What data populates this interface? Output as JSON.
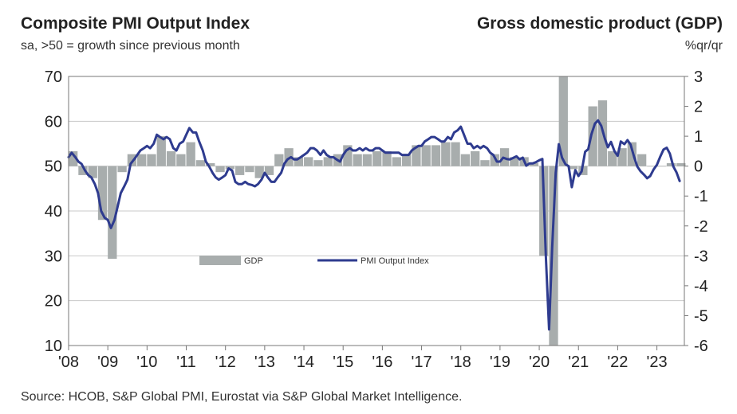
{
  "chart_data": {
    "type": "bar+line",
    "title": "Composite PMI Output Index",
    "subtitle": "sa, >50 = growth since previous month",
    "right_title": "Gross domestic product (GDP)",
    "right_unit": "%qr/qr",
    "source": "Source: HCOB, S&P Global PMI, Eurostat via S&P Global Market Intelligence.",
    "left_axis": {
      "min": 10,
      "max": 70,
      "ticks": [
        "70",
        "60",
        "50",
        "40",
        "30",
        "20",
        "10"
      ]
    },
    "right_axis": {
      "min": -6,
      "max": 3,
      "ticks": [
        "3",
        "2",
        "1",
        "0",
        "-1",
        "-2",
        "-3",
        "-4",
        "-5",
        "-6"
      ]
    },
    "x_ticks": [
      "'08",
      "'09",
      "'10",
      "'11",
      "'12",
      "'13",
      "'14",
      "'15",
      "'16",
      "'17",
      "'18",
      "'19",
      "'20",
      "'21",
      "'22",
      "'23"
    ],
    "x_range": [
      2008.0,
      2023.7
    ],
    "grid": true,
    "legend": {
      "position": "center",
      "gdp_label": "GDP",
      "pmi_label": "PMI Output Index"
    },
    "colors": {
      "gdp_bar": "#a8adad",
      "pmi_line": "#2e3b8f",
      "grid": "#c8c8c8"
    },
    "gdp_series": {
      "name": "GDP",
      "points": [
        [
          2008.0,
          0.5
        ],
        [
          2008.25,
          -0.3
        ],
        [
          2008.5,
          -0.4
        ],
        [
          2008.75,
          -1.8
        ],
        [
          2009.0,
          -3.1
        ],
        [
          2009.25,
          -0.2
        ],
        [
          2009.5,
          0.4
        ],
        [
          2009.75,
          0.4
        ],
        [
          2010.0,
          0.4
        ],
        [
          2010.25,
          1.0
        ],
        [
          2010.5,
          0.5
        ],
        [
          2010.75,
          0.4
        ],
        [
          2011.0,
          0.8
        ],
        [
          2011.25,
          0.2
        ],
        [
          2011.5,
          0.1
        ],
        [
          2011.75,
          -0.2
        ],
        [
          2012.0,
          -0.1
        ],
        [
          2012.25,
          -0.3
        ],
        [
          2012.5,
          -0.2
        ],
        [
          2012.75,
          -0.4
        ],
        [
          2013.0,
          -0.3
        ],
        [
          2013.25,
          0.4
        ],
        [
          2013.5,
          0.6
        ],
        [
          2013.75,
          0.3
        ],
        [
          2014.0,
          0.3
        ],
        [
          2014.25,
          0.2
        ],
        [
          2014.5,
          0.3
        ],
        [
          2014.75,
          0.4
        ],
        [
          2015.0,
          0.7
        ],
        [
          2015.25,
          0.4
        ],
        [
          2015.5,
          0.4
        ],
        [
          2015.75,
          0.5
        ],
        [
          2016.0,
          0.5
        ],
        [
          2016.25,
          0.3
        ],
        [
          2016.5,
          0.4
        ],
        [
          2016.75,
          0.7
        ],
        [
          2017.0,
          0.7
        ],
        [
          2017.25,
          0.7
        ],
        [
          2017.5,
          0.8
        ],
        [
          2017.75,
          0.8
        ],
        [
          2018.0,
          0.4
        ],
        [
          2018.25,
          0.5
        ],
        [
          2018.5,
          0.2
        ],
        [
          2018.75,
          0.4
        ],
        [
          2019.0,
          0.6
        ],
        [
          2019.25,
          0.3
        ],
        [
          2019.5,
          0.3
        ],
        [
          2019.75,
          0.1
        ],
        [
          2020.0,
          -3.0
        ],
        [
          2020.25,
          -6.0
        ],
        [
          2020.5,
          3.0
        ],
        [
          2020.75,
          -0.1
        ],
        [
          2021.0,
          -0.3
        ],
        [
          2021.25,
          2.0
        ],
        [
          2021.5,
          2.2
        ],
        [
          2021.75,
          0.5
        ],
        [
          2022.0,
          0.6
        ],
        [
          2022.25,
          0.8
        ],
        [
          2022.5,
          0.4
        ],
        [
          2022.75,
          0.0
        ],
        [
          2023.0,
          0.0
        ],
        [
          2023.25,
          0.1
        ],
        [
          2023.5,
          0.1
        ]
      ]
    },
    "pmi_series": {
      "name": "PMI Output Index",
      "points": [
        [
          2008.0,
          52.0
        ],
        [
          2008.08,
          53.0
        ],
        [
          2008.17,
          52.0
        ],
        [
          2008.25,
          51.0
        ],
        [
          2008.33,
          50.5
        ],
        [
          2008.42,
          49.0
        ],
        [
          2008.5,
          48.0
        ],
        [
          2008.58,
          47.5
        ],
        [
          2008.67,
          46.0
        ],
        [
          2008.75,
          44.0
        ],
        [
          2008.83,
          40.0
        ],
        [
          2008.92,
          38.5
        ],
        [
          2009.0,
          38.0
        ],
        [
          2009.08,
          36.2
        ],
        [
          2009.17,
          38.0
        ],
        [
          2009.25,
          41.0
        ],
        [
          2009.33,
          44.0
        ],
        [
          2009.42,
          45.5
        ],
        [
          2009.5,
          47.0
        ],
        [
          2009.58,
          50.5
        ],
        [
          2009.67,
          51.5
        ],
        [
          2009.75,
          52.5
        ],
        [
          2009.83,
          53.5
        ],
        [
          2009.92,
          54.0
        ],
        [
          2010.0,
          54.5
        ],
        [
          2010.08,
          54.0
        ],
        [
          2010.17,
          55.0
        ],
        [
          2010.25,
          57.0
        ],
        [
          2010.33,
          56.5
        ],
        [
          2010.42,
          56.0
        ],
        [
          2010.5,
          56.5
        ],
        [
          2010.58,
          56.0
        ],
        [
          2010.67,
          54.0
        ],
        [
          2010.75,
          53.5
        ],
        [
          2010.83,
          55.0
        ],
        [
          2010.92,
          55.5
        ],
        [
          2011.0,
          57.0
        ],
        [
          2011.08,
          58.5
        ],
        [
          2011.17,
          57.5
        ],
        [
          2011.25,
          57.5
        ],
        [
          2011.33,
          55.5
        ],
        [
          2011.42,
          53.5
        ],
        [
          2011.5,
          51.0
        ],
        [
          2011.58,
          50.0
        ],
        [
          2011.67,
          48.5
        ],
        [
          2011.75,
          47.5
        ],
        [
          2011.83,
          47.0
        ],
        [
          2011.92,
          47.5
        ],
        [
          2012.0,
          48.0
        ],
        [
          2012.08,
          49.5
        ],
        [
          2012.17,
          49.0
        ],
        [
          2012.25,
          46.5
        ],
        [
          2012.33,
          46.0
        ],
        [
          2012.42,
          46.0
        ],
        [
          2012.5,
          46.5
        ],
        [
          2012.58,
          46.0
        ],
        [
          2012.67,
          45.8
        ],
        [
          2012.75,
          45.5
        ],
        [
          2012.83,
          46.0
        ],
        [
          2012.92,
          47.0
        ],
        [
          2013.0,
          48.5
        ],
        [
          2013.08,
          47.5
        ],
        [
          2013.17,
          46.5
        ],
        [
          2013.25,
          46.5
        ],
        [
          2013.33,
          47.5
        ],
        [
          2013.42,
          48.5
        ],
        [
          2013.5,
          50.5
        ],
        [
          2013.58,
          51.5
        ],
        [
          2013.67,
          52.0
        ],
        [
          2013.75,
          51.5
        ],
        [
          2013.83,
          51.5
        ],
        [
          2013.92,
          52.0
        ],
        [
          2014.0,
          52.5
        ],
        [
          2014.08,
          53.0
        ],
        [
          2014.17,
          54.0
        ],
        [
          2014.25,
          54.0
        ],
        [
          2014.33,
          53.5
        ],
        [
          2014.42,
          52.5
        ],
        [
          2014.5,
          53.5
        ],
        [
          2014.58,
          52.5
        ],
        [
          2014.67,
          52.0
        ],
        [
          2014.75,
          52.0
        ],
        [
          2014.83,
          51.5
        ],
        [
          2014.92,
          51.0
        ],
        [
          2015.0,
          52.5
        ],
        [
          2015.08,
          53.5
        ],
        [
          2015.17,
          54.0
        ],
        [
          2015.25,
          53.5
        ],
        [
          2015.33,
          53.5
        ],
        [
          2015.42,
          54.0
        ],
        [
          2015.5,
          53.5
        ],
        [
          2015.58,
          54.0
        ],
        [
          2015.67,
          53.5
        ],
        [
          2015.75,
          53.5
        ],
        [
          2015.83,
          54.0
        ],
        [
          2015.92,
          54.0
        ],
        [
          2016.0,
          53.5
        ],
        [
          2016.08,
          53.0
        ],
        [
          2016.17,
          53.0
        ],
        [
          2016.25,
          53.0
        ],
        [
          2016.33,
          53.0
        ],
        [
          2016.42,
          53.0
        ],
        [
          2016.5,
          52.5
        ],
        [
          2016.58,
          52.5
        ],
        [
          2016.67,
          52.5
        ],
        [
          2016.75,
          53.5
        ],
        [
          2016.83,
          54.0
        ],
        [
          2016.92,
          54.5
        ],
        [
          2017.0,
          54.5
        ],
        [
          2017.08,
          55.5
        ],
        [
          2017.17,
          56.0
        ],
        [
          2017.25,
          56.5
        ],
        [
          2017.33,
          56.5
        ],
        [
          2017.42,
          56.0
        ],
        [
          2017.5,
          55.5
        ],
        [
          2017.58,
          55.5
        ],
        [
          2017.67,
          56.5
        ],
        [
          2017.75,
          56.0
        ],
        [
          2017.83,
          57.5
        ],
        [
          2017.92,
          58.0
        ],
        [
          2018.0,
          58.8
        ],
        [
          2018.08,
          57.0
        ],
        [
          2018.17,
          55.0
        ],
        [
          2018.25,
          55.0
        ],
        [
          2018.33,
          54.0
        ],
        [
          2018.42,
          54.5
        ],
        [
          2018.5,
          54.0
        ],
        [
          2018.58,
          54.5
        ],
        [
          2018.67,
          54.0
        ],
        [
          2018.75,
          53.0
        ],
        [
          2018.83,
          52.5
        ],
        [
          2018.92,
          51.0
        ],
        [
          2019.0,
          51.0
        ],
        [
          2019.08,
          51.9
        ],
        [
          2019.17,
          51.6
        ],
        [
          2019.25,
          51.5
        ],
        [
          2019.33,
          51.8
        ],
        [
          2019.42,
          52.2
        ],
        [
          2019.5,
          51.5
        ],
        [
          2019.58,
          51.9
        ],
        [
          2019.67,
          50.1
        ],
        [
          2019.75,
          50.6
        ],
        [
          2019.83,
          50.6
        ],
        [
          2019.92,
          50.9
        ],
        [
          2020.0,
          51.3
        ],
        [
          2020.08,
          51.6
        ],
        [
          2020.17,
          29.7
        ],
        [
          2020.25,
          13.6
        ],
        [
          2020.33,
          31.9
        ],
        [
          2020.42,
          48.5
        ],
        [
          2020.5,
          54.9
        ],
        [
          2020.58,
          51.9
        ],
        [
          2020.67,
          50.4
        ],
        [
          2020.75,
          50.0
        ],
        [
          2020.83,
          45.3
        ],
        [
          2020.92,
          49.1
        ],
        [
          2021.0,
          47.8
        ],
        [
          2021.08,
          48.8
        ],
        [
          2021.17,
          53.2
        ],
        [
          2021.25,
          53.8
        ],
        [
          2021.33,
          57.1
        ],
        [
          2021.42,
          59.5
        ],
        [
          2021.5,
          60.2
        ],
        [
          2021.58,
          59.0
        ],
        [
          2021.67,
          56.2
        ],
        [
          2021.75,
          54.2
        ],
        [
          2021.83,
          55.4
        ],
        [
          2021.92,
          53.3
        ],
        [
          2022.0,
          52.3
        ],
        [
          2022.08,
          55.5
        ],
        [
          2022.17,
          54.9
        ],
        [
          2022.25,
          55.8
        ],
        [
          2022.33,
          54.8
        ],
        [
          2022.42,
          52.0
        ],
        [
          2022.5,
          49.9
        ],
        [
          2022.58,
          48.9
        ],
        [
          2022.67,
          48.1
        ],
        [
          2022.75,
          47.3
        ],
        [
          2022.83,
          47.8
        ],
        [
          2022.92,
          49.3
        ],
        [
          2023.0,
          50.3
        ],
        [
          2023.08,
          52.0
        ],
        [
          2023.17,
          53.7
        ],
        [
          2023.25,
          54.1
        ],
        [
          2023.33,
          52.8
        ],
        [
          2023.42,
          49.9
        ],
        [
          2023.5,
          48.6
        ],
        [
          2023.58,
          46.7
        ]
      ]
    }
  }
}
